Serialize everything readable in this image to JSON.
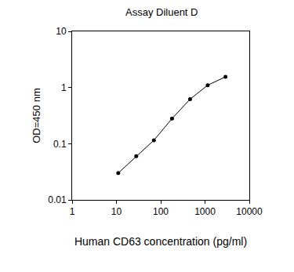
{
  "chart_data": {
    "type": "line",
    "title": "Assay Diluent D",
    "x_label": "Human CD63 concentration (pg/ml)",
    "y_label": "OD=450 nm",
    "x": [
      11,
      28,
      70,
      180,
      460,
      1150,
      2900
    ],
    "values": [
      0.03,
      0.06,
      0.115,
      0.28,
      0.62,
      1.1,
      1.55
    ],
    "xlim": [
      1,
      10000
    ],
    "ylim": [
      0.01,
      10
    ],
    "xticks": [
      1,
      10,
      100,
      1000,
      10000
    ],
    "yticks": [
      0.01,
      0.1,
      1,
      10
    ],
    "log": true,
    "grid": false,
    "color": "#000000",
    "marker": "circle"
  }
}
